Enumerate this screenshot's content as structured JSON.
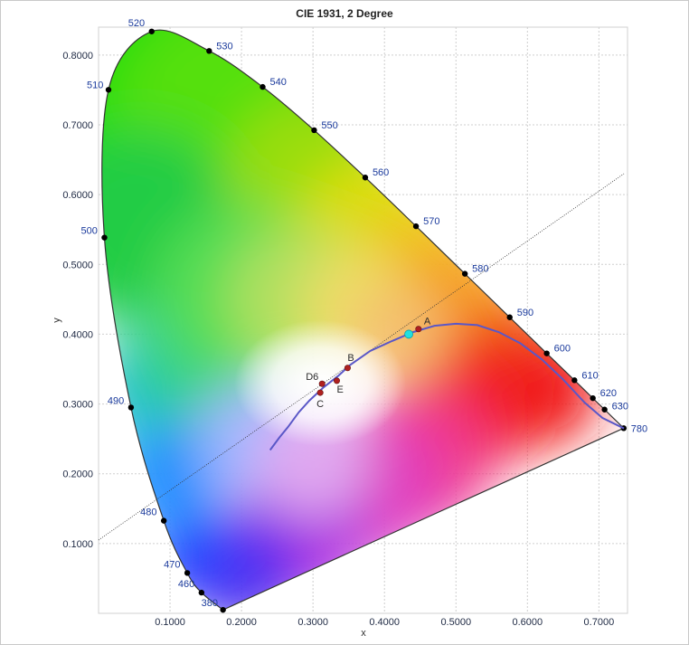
{
  "chart_data": {
    "type": "scatter",
    "title": "CIE 1931, 2 Degree",
    "xlabel": "x",
    "ylabel": "y",
    "xlim": [
      0.0,
      0.74
    ],
    "ylim": [
      0.0,
      0.84
    ],
    "grid": true,
    "x_ticks": [
      "0.1000",
      "0.2000",
      "0.3000",
      "0.4000",
      "0.5000",
      "0.6000",
      "0.7000"
    ],
    "y_ticks": [
      "0.1000",
      "0.2000",
      "0.3000",
      "0.4000",
      "0.5000",
      "0.6000",
      "0.7000",
      "0.8000"
    ],
    "spectral_locus": [
      {
        "label": "380",
        "x": 0.1741,
        "y": 0.005
      },
      {
        "label": "460",
        "x": 0.144,
        "y": 0.0297
      },
      {
        "label": "470",
        "x": 0.1241,
        "y": 0.0578
      },
      {
        "label": "480",
        "x": 0.0913,
        "y": 0.1327
      },
      {
        "label": "490",
        "x": 0.0454,
        "y": 0.295
      },
      {
        "label": "500",
        "x": 0.0082,
        "y": 0.5384
      },
      {
        "label": "510",
        "x": 0.0139,
        "y": 0.7502
      },
      {
        "label": "520",
        "x": 0.0743,
        "y": 0.8338
      },
      {
        "label": "530",
        "x": 0.1547,
        "y": 0.8059
      },
      {
        "label": "540",
        "x": 0.2296,
        "y": 0.7543
      },
      {
        "label": "550",
        "x": 0.3016,
        "y": 0.6923
      },
      {
        "label": "560",
        "x": 0.3731,
        "y": 0.6245
      },
      {
        "label": "570",
        "x": 0.4441,
        "y": 0.5547
      },
      {
        "label": "580",
        "x": 0.5125,
        "y": 0.4866
      },
      {
        "label": "590",
        "x": 0.5752,
        "y": 0.4242
      },
      {
        "label": "600",
        "x": 0.627,
        "y": 0.3725
      },
      {
        "label": "610",
        "x": 0.6658,
        "y": 0.334
      },
      {
        "label": "620",
        "x": 0.6915,
        "y": 0.3083
      },
      {
        "label": "630",
        "x": 0.7079,
        "y": 0.292
      },
      {
        "label": "780",
        "x": 0.7347,
        "y": 0.2653
      }
    ],
    "reference_points": [
      {
        "label": "A",
        "x": 0.4476,
        "y": 0.4074
      },
      {
        "label": "B",
        "x": 0.3484,
        "y": 0.3516
      },
      {
        "label": "D6",
        "x": 0.3127,
        "y": 0.329
      },
      {
        "label": "E",
        "x": 0.3333,
        "y": 0.3333
      },
      {
        "label": "C",
        "x": 0.3101,
        "y": 0.3162
      }
    ],
    "highlight_point": {
      "x": 0.434,
      "y": 0.4
    },
    "planckian_locus": [
      [
        0.24,
        0.234
      ],
      [
        0.253,
        0.252
      ],
      [
        0.265,
        0.267
      ],
      [
        0.28,
        0.288
      ],
      [
        0.295,
        0.305
      ],
      [
        0.315,
        0.324
      ],
      [
        0.335,
        0.34
      ],
      [
        0.352,
        0.356
      ],
      [
        0.38,
        0.376
      ],
      [
        0.41,
        0.39
      ],
      [
        0.44,
        0.403
      ],
      [
        0.47,
        0.412
      ],
      [
        0.5,
        0.415
      ],
      [
        0.53,
        0.413
      ],
      [
        0.56,
        0.403
      ],
      [
        0.59,
        0.387
      ],
      [
        0.62,
        0.364
      ],
      [
        0.65,
        0.335
      ],
      [
        0.68,
        0.302
      ],
      [
        0.705,
        0.28
      ],
      [
        0.735,
        0.265
      ]
    ],
    "reference_line": [
      [
        0.0,
        0.105
      ],
      [
        0.735,
        0.63
      ]
    ]
  }
}
